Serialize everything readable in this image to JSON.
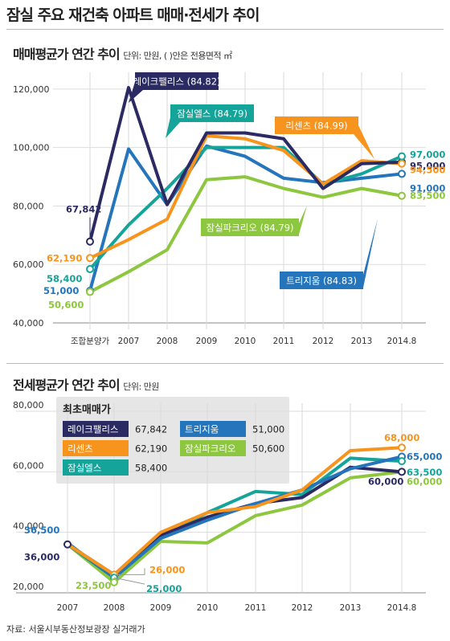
{
  "title": "잠실 주요 재건축 아파트 매매·전세가 추이",
  "source": "자료: 서울시부동산정보광장 실거래가",
  "chart_data": [
    {
      "type": "line",
      "title": "매매평균가 연간 추이",
      "unit_note": "단위: 만원, ( )안은 전용면적 ㎡",
      "categories": [
        "조합분양가",
        "2007",
        "2008",
        "2009",
        "2010",
        "2011",
        "2012",
        "2013",
        "2014.8"
      ],
      "yticks": [
        "120,000",
        "100,000",
        "80,000",
        "60,000",
        "40,000"
      ],
      "ylim": [
        40000,
        123000
      ],
      "series": [
        {
          "name": "레이크팰리스 (84.82)",
          "color": "#2b2a63",
          "values": [
            67842,
            120500,
            80500,
            105000,
            105000,
            103000,
            86000,
            94500,
            95000
          ],
          "start_label": "67,842",
          "end_label": "95,000"
        },
        {
          "name": "잠실엘스 (84.79)",
          "color": "#14a49a",
          "values": [
            58400,
            73500,
            86000,
            100000,
            100000,
            100000,
            87500,
            91000,
            97000
          ],
          "start_label": "58,400",
          "end_label": "97,000"
        },
        {
          "name": "리센츠 (84.99)",
          "color": "#f7941d",
          "values": [
            62190,
            68500,
            75500,
            104000,
            103000,
            99000,
            87500,
            95500,
            94500
          ],
          "start_label": "62,190",
          "end_label": "94,500"
        },
        {
          "name": "트리지움 (84.83)",
          "color": "#2475bb",
          "values": [
            51000,
            99500,
            80500,
            100500,
            97000,
            89500,
            88000,
            89500,
            91000
          ],
          "start_label": "51,000",
          "end_label": "91,000"
        },
        {
          "name": "잠실파크리오 (84.79)",
          "color": "#8dc63f",
          "values": [
            50600,
            57500,
            65000,
            89000,
            90000,
            86000,
            83000,
            86000,
            83500
          ],
          "start_label": "50,600",
          "end_label": "83,500"
        }
      ]
    },
    {
      "type": "line",
      "title": "전세평균가 연간 추이",
      "unit_note": "단위: 만원",
      "categories": [
        "2007",
        "2008",
        "2009",
        "2010",
        "2011",
        "2012",
        "2013",
        "2014.8"
      ],
      "yticks": [
        "80,000",
        "60,000",
        "40,000",
        "20,000"
      ],
      "ylim": [
        20000,
        80000
      ],
      "legend_title": "최초매매가",
      "legend": [
        {
          "name": "레이크팰리스",
          "value": "67,842",
          "color": "#2b2a63"
        },
        {
          "name": "트리지움",
          "value": "51,000",
          "color": "#2475bb"
        },
        {
          "name": "리센츠",
          "value": "62,190",
          "color": "#f7941d"
        },
        {
          "name": "잠실파크리오",
          "value": "50,600",
          "color": "#8dc63f"
        },
        {
          "name": "잠실엘스",
          "value": "58,400",
          "color": "#14a49a"
        }
      ],
      "series": [
        {
          "name": "레이크팰리스",
          "color": "#2b2a63",
          "values": [
            36000,
            26000,
            39000,
            45000,
            49500,
            51500,
            61500,
            60000
          ]
        },
        {
          "name": "트리지움",
          "color": "#2475bb",
          "values": [
            36500,
            25000,
            38000,
            44000,
            49500,
            54000,
            61000,
            65000
          ]
        },
        {
          "name": "리센츠",
          "color": "#f7941d",
          "values": [
            36000,
            26000,
            40000,
            46500,
            48500,
            54000,
            67000,
            68000
          ]
        },
        {
          "name": "잠실엘스",
          "color": "#14a49a",
          "values": [
            36000,
            25000,
            38000,
            46500,
            53500,
            52500,
            64500,
            63500
          ]
        },
        {
          "name": "잠실파크리오",
          "color": "#8dc63f",
          "values": [
            36000,
            23500,
            37000,
            36500,
            45500,
            49000,
            58000,
            60000
          ]
        }
      ],
      "annotations": [
        {
          "text": "36,500",
          "color": "#2475bb"
        },
        {
          "text": "36,000",
          "color": "#2b2a63"
        },
        {
          "text": "23,500",
          "color": "#8dc63f"
        },
        {
          "text": "26,000",
          "color": "#f7941d"
        },
        {
          "text": "25,000",
          "color": "#14a49a"
        },
        {
          "text": "68,000",
          "color": "#f7941d"
        },
        {
          "text": "65,000",
          "color": "#2475bb"
        },
        {
          "text": "63,500",
          "color": "#14a49a"
        },
        {
          "text": "60,000",
          "color": "#2b2a63"
        },
        {
          "text": "60,000",
          "color": "#8dc63f"
        }
      ]
    }
  ]
}
